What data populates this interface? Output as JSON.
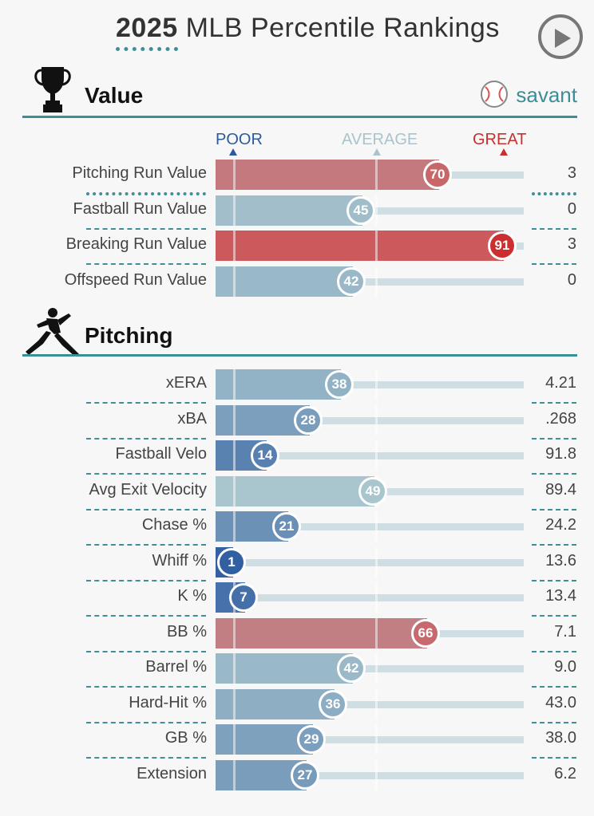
{
  "header": {
    "title_year": "2025",
    "title_rest": "MLB Percentile Rankings",
    "play_icon": "play-icon"
  },
  "sections": {
    "value": {
      "title": "Value",
      "icon": "trophy-icon"
    },
    "pitching": {
      "title": "Pitching",
      "icon": "pitcher-icon"
    }
  },
  "brand": {
    "name": "savant",
    "icon": "baseball-icon"
  },
  "scale": {
    "poor": "POOR",
    "average": "AVERAGE",
    "great": "GREAT"
  },
  "colors": {
    "accent": "#3a8e98",
    "poor": "#2c5b9c",
    "great": "#d63b3b",
    "average": "#a9c4cb",
    "track": "#cfdee3"
  },
  "chart_data": {
    "type": "bar",
    "title": "2025 MLB Percentile Rankings",
    "xlim": [
      0,
      100
    ],
    "groups": [
      {
        "name": "Value",
        "rows": [
          {
            "metric": "Pitching Run Value",
            "percentile": 70,
            "value": "3"
          },
          {
            "metric": "Fastball Run Value",
            "percentile": 45,
            "value": "0"
          },
          {
            "metric": "Breaking Run Value",
            "percentile": 91,
            "value": "3"
          },
          {
            "metric": "Offspeed Run Value",
            "percentile": 42,
            "value": "0"
          }
        ]
      },
      {
        "name": "Pitching",
        "rows": [
          {
            "metric": "xERA",
            "percentile": 38,
            "value": "4.21"
          },
          {
            "metric": "xBA",
            "percentile": 28,
            "value": ".268"
          },
          {
            "metric": "Fastball Velo",
            "percentile": 14,
            "value": "91.8"
          },
          {
            "metric": "Avg Exit Velocity",
            "percentile": 49,
            "value": "89.4"
          },
          {
            "metric": "Chase %",
            "percentile": 21,
            "value": "24.2"
          },
          {
            "metric": "Whiff %",
            "percentile": 1,
            "value": "13.6"
          },
          {
            "metric": "K %",
            "percentile": 7,
            "value": "13.4"
          },
          {
            "metric": "BB %",
            "percentile": 66,
            "value": "7.1"
          },
          {
            "metric": "Barrel %",
            "percentile": 42,
            "value": "9.0"
          },
          {
            "metric": "Hard-Hit %",
            "percentile": 36,
            "value": "43.0"
          },
          {
            "metric": "GB %",
            "percentile": 29,
            "value": "38.0"
          },
          {
            "metric": "Extension",
            "percentile": 27,
            "value": "6.2"
          }
        ]
      }
    ]
  }
}
